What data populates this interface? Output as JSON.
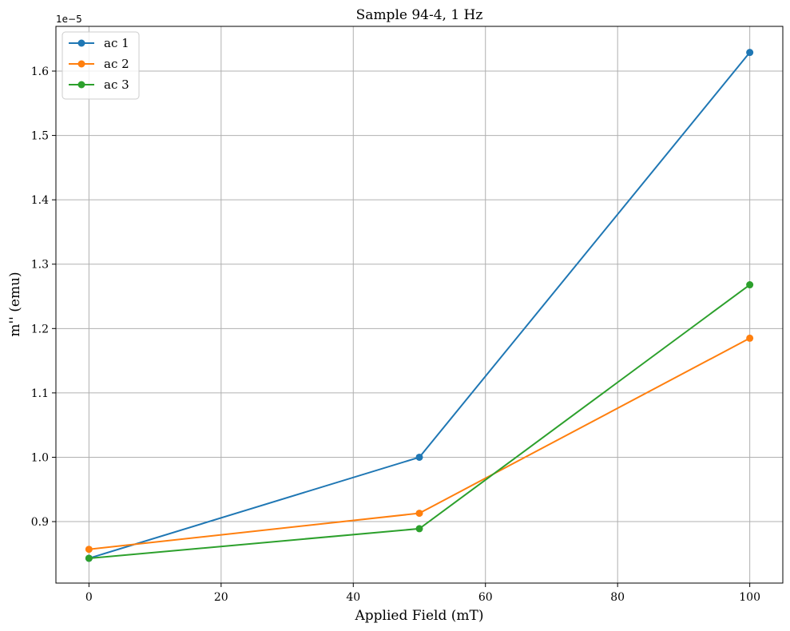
{
  "chart_data": {
    "type": "line",
    "title": "Sample 94-4, 1 Hz",
    "xlabel": "Applied Field (mT)",
    "ylabel": "m'' (emu)",
    "y_offset_label": "1e−5",
    "xlim": [
      -5,
      105
    ],
    "ylim": [
      0.8045,
      1.6695
    ],
    "x_ticks": [
      0,
      20,
      40,
      60,
      80,
      100
    ],
    "x_tick_labels": [
      "0",
      "20",
      "40",
      "60",
      "80",
      "100"
    ],
    "y_ticks": [
      0.9,
      1.0,
      1.1,
      1.2,
      1.3,
      1.4,
      1.5,
      1.6
    ],
    "y_tick_labels": [
      "0.9",
      "1.0",
      "1.1",
      "1.2",
      "1.3",
      "1.4",
      "1.5",
      "1.6"
    ],
    "grid": true,
    "legend_position": "top-left",
    "series": [
      {
        "name": "ac 1",
        "color": "#1f77b4",
        "x": [
          0,
          50,
          100
        ],
        "values": [
          0.843,
          1.0,
          1.629
        ]
      },
      {
        "name": "ac 2",
        "color": "#ff7f0e",
        "x": [
          0,
          50,
          100
        ],
        "values": [
          0.857,
          0.913,
          1.185
        ]
      },
      {
        "name": "ac 3",
        "color": "#2ca02c",
        "x": [
          0,
          50,
          100
        ],
        "values": [
          0.843,
          0.889,
          1.268
        ]
      }
    ]
  }
}
